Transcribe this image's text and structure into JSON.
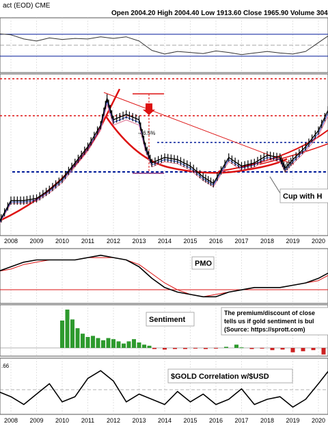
{
  "header": {
    "symbol_fragment": "act (EOD)",
    "exchange": "CME",
    "open_label": "Open",
    "open_value": "2004.20",
    "high_label": "High",
    "high_value": "2004.40",
    "low_label": "Low",
    "low_value": "1913.60",
    "close_label": "Close",
    "close_value": "1965.90",
    "volume_label": "Volume",
    "volume_value": "304"
  },
  "annotations": {
    "drop_pct": "-46.5%",
    "pattern": "Cup with H",
    "pmo_label": "PMO",
    "sentiment_label": "Sentiment",
    "sentiment_note_line1": "The premium/discount of close",
    "sentiment_note_line2": "tells us if gold sentiment is bul",
    "sentiment_note_line3": "(Source: https://sprott.com)",
    "correlation_label": "$GOLD Correlation w/$USD",
    "corr_axis_value": ".66"
  },
  "colors": {
    "price_bar": "#000000",
    "sma_blue": "#1f3fbf",
    "sma_pink": "#e07090",
    "trend_red": "#dd1111",
    "support_navy": "#001a99",
    "sentiment_up": "#2e9a2e",
    "sentiment_down": "#cc2222",
    "panel_border": "#555555"
  },
  "chart_data": [
    {
      "type": "line",
      "panel": "momentum-oscillator",
      "x": [
        2007.5,
        2008.0,
        2008.5,
        2009.0,
        2009.5,
        2010.0,
        2010.5,
        2011.0,
        2011.5,
        2012.0,
        2012.5,
        2013.0,
        2013.5,
        2014.0,
        2014.5,
        2015.0,
        2015.5,
        2016.0,
        2016.5,
        2017.0,
        2017.5,
        2018.0,
        2018.5,
        2019.0,
        2019.5,
        2020.0,
        2020.5,
        2020.8
      ],
      "values": [
        72,
        70,
        62,
        58,
        64,
        61,
        63,
        62,
        66,
        63,
        66,
        58,
        40,
        33,
        38,
        36,
        34,
        39,
        36,
        32,
        35,
        38,
        35,
        33,
        38,
        55,
        72,
        80
      ]
    },
    {
      "type": "line",
      "panel": "price",
      "title": "",
      "x": [
        2007.5,
        2008.0,
        2008.5,
        2009.0,
        2009.5,
        2010.0,
        2010.5,
        2011.0,
        2011.5,
        2011.75,
        2012.0,
        2012.5,
        2013.0,
        2013.25,
        2013.5,
        2014.0,
        2014.5,
        2015.0,
        2015.5,
        2015.9,
        2016.5,
        2017.0,
        2017.5,
        2018.0,
        2018.5,
        2018.7,
        2019.0,
        2019.5,
        2020.0,
        2020.5,
        2020.8
      ],
      "values": [
        680,
        900,
        900,
        920,
        1000,
        1100,
        1250,
        1400,
        1600,
        1850,
        1650,
        1700,
        1650,
        1400,
        1250,
        1300,
        1280,
        1220,
        1120,
        1060,
        1300,
        1220,
        1250,
        1320,
        1300,
        1200,
        1280,
        1400,
        1550,
        1800,
        1965.9
      ],
      "ylabel": ""
    },
    {
      "type": "line",
      "panel": "pmo",
      "x": [
        2007.5,
        2008.0,
        2008.5,
        2009.0,
        2009.5,
        2010.0,
        2010.5,
        2011.0,
        2011.5,
        2012.0,
        2012.5,
        2013.0,
        2013.5,
        2014.0,
        2014.5,
        2015.0,
        2015.5,
        2016.0,
        2016.5,
        2017.0,
        2017.5,
        2018.0,
        2018.5,
        2019.0,
        2019.5,
        2020.0,
        2020.5,
        2020.8
      ],
      "series": [
        {
          "values": [
            -1,
            1,
            3,
            4,
            4,
            4,
            4,
            5,
            6,
            5,
            4,
            1,
            -4,
            -8,
            -10,
            -11,
            -12,
            -12,
            -10,
            -9,
            -8,
            -8,
            -8,
            -7,
            -6,
            -4,
            -1,
            2
          ]
        },
        {
          "values": [
            -1,
            0,
            2,
            3,
            4,
            4,
            4,
            5,
            5,
            5,
            4,
            2,
            -2,
            -6,
            -9,
            -11,
            -12,
            -11,
            -10,
            -9,
            -8,
            -8,
            -8,
            -7,
            -6,
            -5,
            -2,
            0
          ]
        }
      ]
    },
    {
      "type": "bar",
      "panel": "sentiment",
      "x": [
        2010.0,
        2010.2,
        2010.4,
        2010.6,
        2010.8,
        2011.0,
        2011.2,
        2011.4,
        2011.6,
        2011.8,
        2012.0,
        2012.2,
        2012.4,
        2012.6,
        2012.8,
        2013.0,
        2013.2,
        2013.4,
        2013.6,
        2014.0,
        2014.4,
        2014.8,
        2015.2,
        2015.6,
        2016.0,
        2016.4,
        2016.8,
        2017.0,
        2017.4,
        2017.8,
        2018.2,
        2018.6,
        2019.0,
        2019.4,
        2019.8,
        2020.2,
        2020.6,
        2020.8
      ],
      "values": [
        2.5,
        3.5,
        2.6,
        1.8,
        1.3,
        1.0,
        1.1,
        0.9,
        0.7,
        0.9,
        0.8,
        0.6,
        0.4,
        0.6,
        0.8,
        0.5,
        0.3,
        0.2,
        -0.1,
        -0.15,
        -0.1,
        -0.1,
        -0.05,
        -0.1,
        -0.05,
        0.1,
        0.3,
        0.05,
        -0.1,
        -0.05,
        -0.2,
        -0.15,
        -0.4,
        -0.3,
        -0.2,
        -0.6,
        -0.2,
        0.1
      ]
    },
    {
      "type": "line",
      "panel": "correlation",
      "x": [
        2007.5,
        2008.0,
        2008.5,
        2009.0,
        2009.5,
        2010.0,
        2010.5,
        2011.0,
        2011.5,
        2012.0,
        2012.5,
        2013.0,
        2013.5,
        2014.0,
        2014.5,
        2015.0,
        2015.5,
        2016.0,
        2016.5,
        2017.0,
        2017.5,
        2018.0,
        2018.5,
        2019.0,
        2019.5,
        2020.0,
        2020.4,
        2020.8
      ],
      "values": [
        -0.2,
        -0.4,
        -0.7,
        -0.3,
        0.1,
        -0.6,
        -0.4,
        0.3,
        0.6,
        0.2,
        -0.6,
        -0.3,
        -0.5,
        -0.7,
        -0.2,
        -0.6,
        -0.3,
        -0.7,
        -0.5,
        -0.1,
        -0.7,
        -0.5,
        -0.4,
        -0.8,
        -0.5,
        0.1,
        0.6,
        -0.1
      ]
    }
  ],
  "axis": {
    "years": [
      "2008",
      "2009",
      "2010",
      "2011",
      "2012",
      "2013",
      "2014",
      "2015",
      "2016",
      "2017",
      "2018",
      "2019",
      "2020"
    ]
  }
}
